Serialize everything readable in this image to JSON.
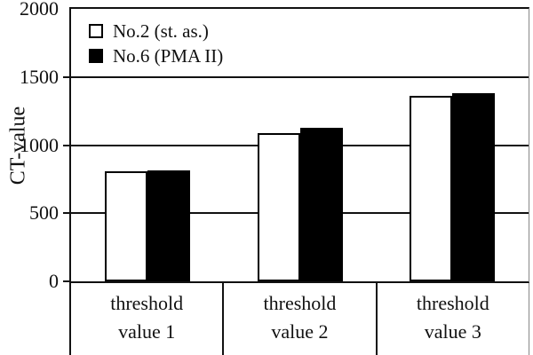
{
  "chart_data": {
    "type": "bar",
    "title": "",
    "xlabel": "",
    "ylabel": "CT-value",
    "ylim": [
      0,
      2000
    ],
    "yticks": [
      0,
      500,
      1000,
      1500,
      2000
    ],
    "grid": true,
    "legend_position": "top-left",
    "categories": [
      "threshold value 1",
      "threshold value 2",
      "threshold value 3"
    ],
    "series": [
      {
        "name": "No.2 (st. as.)",
        "fill": "#ffffff",
        "values": [
          810,
          1085,
          1360
        ]
      },
      {
        "name": "No.6 (PMA II)",
        "fill": "#000000",
        "values": [
          815,
          1125,
          1380
        ]
      }
    ],
    "colors": {
      "axis": "#111111",
      "text": "#111111",
      "background": "#ffffff"
    }
  }
}
